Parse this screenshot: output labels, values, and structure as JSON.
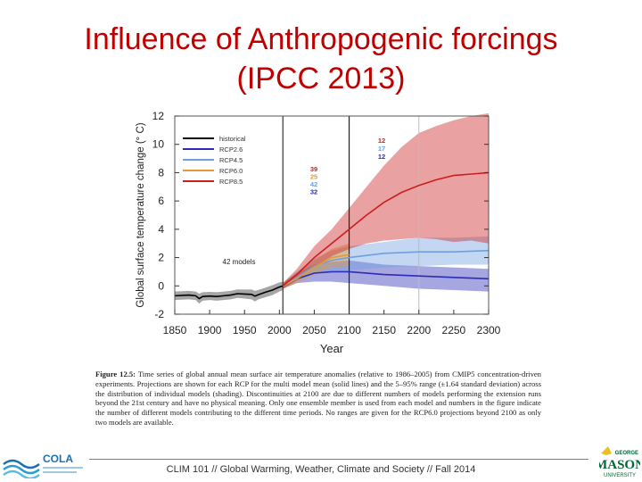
{
  "slide": {
    "title_line1": "Influence of Anthropogenic forcings",
    "title_line2": "(IPCC 2013)"
  },
  "chart_data": {
    "type": "line",
    "title": "",
    "xlabel": "Year",
    "ylabel": "Global surface temperature change (° C)",
    "xlim": [
      1850,
      2300
    ],
    "ylim": [
      -2,
      12
    ],
    "x_ticks": [
      1850,
      1900,
      1950,
      2000,
      2050,
      2100,
      2150,
      2200,
      2250,
      2300
    ],
    "y_ticks": [
      -2,
      0,
      2,
      4,
      6,
      8,
      10,
      12
    ],
    "vertical_lines": [
      2005,
      2100,
      2200
    ],
    "annotation": "42 models",
    "model_counts_2100": [
      "39",
      "25",
      "42",
      "32"
    ],
    "model_counts_2300": [
      "12",
      "17",
      "12"
    ],
    "series": [
      {
        "name": "historical",
        "color": "#000000",
        "x": [
          1850,
          1870,
          1880,
          1885,
          1890,
          1900,
          1910,
          1920,
          1930,
          1940,
          1950,
          1960,
          1965,
          1970,
          1980,
          1990,
          2000,
          2005
        ],
        "values": [
          -0.7,
          -0.65,
          -0.7,
          -0.9,
          -0.75,
          -0.72,
          -0.75,
          -0.7,
          -0.65,
          -0.55,
          -0.58,
          -0.6,
          -0.72,
          -0.62,
          -0.45,
          -0.3,
          -0.08,
          0.0
        ],
        "range_low": [
          -1.0,
          -0.95,
          -1.0,
          -1.25,
          -1.05,
          -1.0,
          -1.05,
          -1.0,
          -0.95,
          -0.85,
          -0.9,
          -0.95,
          -1.1,
          -0.95,
          -0.8,
          -0.65,
          -0.4,
          -0.3
        ],
        "range_high": [
          -0.4,
          -0.35,
          -0.4,
          -0.55,
          -0.45,
          -0.42,
          -0.45,
          -0.4,
          -0.35,
          -0.25,
          -0.26,
          -0.25,
          -0.35,
          -0.28,
          -0.12,
          0.05,
          0.25,
          0.3
        ]
      },
      {
        "name": "RCP2.6",
        "color": "#2c2cb4",
        "x": [
          2005,
          2025,
          2050,
          2075,
          2100,
          2150,
          2200,
          2250,
          2300
        ],
        "values": [
          0.0,
          0.5,
          0.9,
          1.0,
          1.0,
          0.8,
          0.7,
          0.6,
          0.5
        ],
        "range_low": [
          -0.2,
          0.2,
          0.3,
          0.3,
          0.2,
          0.0,
          -0.2,
          -0.3,
          -0.4
        ],
        "range_high": [
          0.2,
          0.9,
          1.5,
          1.7,
          1.8,
          1.5,
          1.4,
          1.3,
          1.2
        ]
      },
      {
        "name": "RCP4.5",
        "color": "#6f9fe0",
        "x": [
          2005,
          2025,
          2050,
          2075,
          2100,
          2150,
          2200,
          2250,
          2300
        ],
        "values": [
          0.0,
          0.6,
          1.4,
          1.8,
          2.0,
          2.3,
          2.4,
          2.4,
          2.5
        ],
        "range_low": [
          -0.2,
          0.3,
          0.9,
          1.1,
          1.1,
          1.3,
          1.4,
          1.5,
          1.5
        ],
        "range_high": [
          0.2,
          1.0,
          1.9,
          2.5,
          2.8,
          3.1,
          3.4,
          3.4,
          3.5
        ]
      },
      {
        "name": "RCP6.0",
        "color": "#e89830",
        "x": [
          2005,
          2025,
          2050,
          2075,
          2100
        ],
        "values": [
          0.0,
          0.5,
          1.3,
          2.0,
          2.2
        ],
        "range_low": [
          -0.2,
          0.2,
          0.8,
          1.3,
          1.4
        ],
        "range_high": [
          0.2,
          0.9,
          1.8,
          2.6,
          3.0
        ]
      },
      {
        "name": "RCP8.5",
        "color": "#cc1e1e",
        "x": [
          2005,
          2025,
          2050,
          2075,
          2100,
          2125,
          2150,
          2175,
          2200,
          2225,
          2250,
          2275,
          2300
        ],
        "values": [
          0.0,
          0.8,
          2.0,
          3.0,
          4.0,
          5.0,
          5.9,
          6.6,
          7.1,
          7.5,
          7.8,
          7.9,
          8.0
        ],
        "range_low": [
          -0.2,
          0.4,
          1.3,
          2.1,
          2.6,
          3.0,
          3.2,
          3.3,
          3.4,
          3.3,
          3.1,
          3.2,
          3.0
        ],
        "range_high": [
          0.2,
          1.2,
          2.8,
          4.0,
          5.5,
          7.0,
          8.5,
          9.8,
          10.8,
          11.3,
          11.7,
          12.0,
          12.2
        ]
      }
    ]
  },
  "caption": {
    "label": "Figure 12.5:",
    "text": " Time series of global annual mean surface air temperature anomalies (relative to 1986–2005) from CMIP5 concentration-driven experiments. Projections are shown for each RCP for the multi model mean (solid lines) and the 5–95% range (±1.64 standard deviation) across the distribution of individual models (shading). Discontinuities at 2100 are due to different numbers of models performing the extension runs beyond the 21st century and have no physical meaning. Only one ensemble member is used from each model and numbers in the figure indicate the number of different models contributing to the different time periods. No ranges are given for the RCP6.0 projections beyond 2100 as only two models are available."
  },
  "footer": {
    "text": "CLIM 101 // Global Warming, Weather, Climate and Society // Fall 2014"
  },
  "logos": {
    "left_text": "COLA",
    "right_top": "GEORGE",
    "right_main": "MASON",
    "right_bottom": "UNIVERSITY"
  },
  "colors": {
    "title": "#c00000",
    "grid": "#bbbbbb"
  }
}
